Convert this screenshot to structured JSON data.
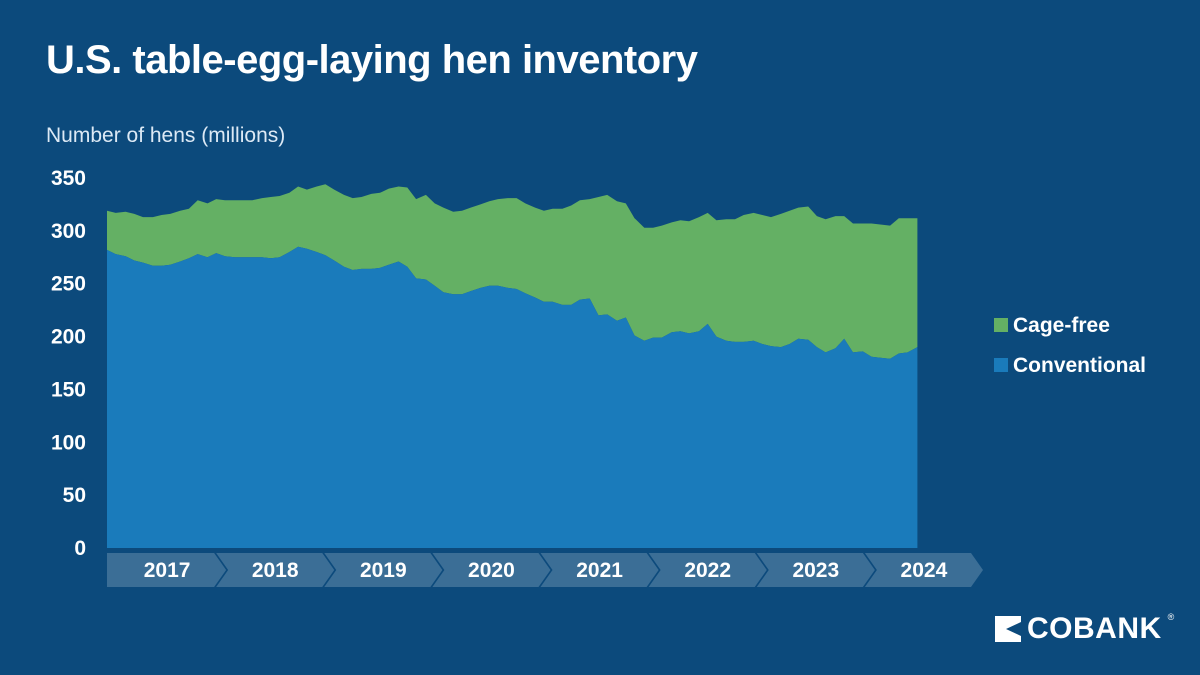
{
  "title": "U.S. table-egg-laying hen inventory",
  "brand": {
    "name": "COBANK",
    "reg_mark": "®"
  },
  "colors": {
    "background": "#0c4a7c",
    "conventional": "#1a7bbb",
    "cage_free": "#64b064",
    "year_band": "#3b6e96"
  },
  "chart_data": {
    "type": "area",
    "stacked": true,
    "title": "U.S. table-egg-laying hen inventory",
    "ylabel": "Number of hens (millions)",
    "xlabel": "",
    "ylim": [
      0,
      350
    ],
    "yticks": [
      "0",
      "50",
      "100",
      "150",
      "200",
      "250",
      "300",
      "350"
    ],
    "ytick_values": [
      0,
      50,
      100,
      150,
      200,
      250,
      300,
      350
    ],
    "grid": false,
    "legend_position": "right",
    "x_years": [
      "2017",
      "2018",
      "2019",
      "2020",
      "2021",
      "2022",
      "2023",
      "2024"
    ],
    "x_range": [
      2017.0,
      2024.92
    ],
    "series": [
      {
        "name": "Conventional",
        "color": "#1a7bbb",
        "points": [
          [
            2017.0,
            282
          ],
          [
            2017.08,
            278
          ],
          [
            2017.17,
            276
          ],
          [
            2017.25,
            272
          ],
          [
            2017.33,
            270
          ],
          [
            2017.42,
            267
          ],
          [
            2017.5,
            267
          ],
          [
            2017.58,
            268
          ],
          [
            2017.67,
            271
          ],
          [
            2017.75,
            274
          ],
          [
            2017.83,
            278
          ],
          [
            2017.92,
            275
          ],
          [
            2018.0,
            279
          ],
          [
            2018.08,
            276
          ],
          [
            2018.17,
            275
          ],
          [
            2018.25,
            275
          ],
          [
            2018.33,
            275
          ],
          [
            2018.42,
            275
          ],
          [
            2018.5,
            274
          ],
          [
            2018.58,
            275
          ],
          [
            2018.67,
            280
          ],
          [
            2018.75,
            285
          ],
          [
            2018.83,
            283
          ],
          [
            2018.92,
            280
          ],
          [
            2019.0,
            277
          ],
          [
            2019.08,
            272
          ],
          [
            2019.17,
            266
          ],
          [
            2019.25,
            263
          ],
          [
            2019.33,
            264
          ],
          [
            2019.42,
            264
          ],
          [
            2019.5,
            265
          ],
          [
            2019.58,
            268
          ],
          [
            2019.67,
            271
          ],
          [
            2019.75,
            266
          ],
          [
            2019.83,
            255
          ],
          [
            2019.92,
            254
          ],
          [
            2020.0,
            248
          ],
          [
            2020.08,
            242
          ],
          [
            2020.17,
            240
          ],
          [
            2020.25,
            240
          ],
          [
            2020.33,
            243
          ],
          [
            2020.42,
            246
          ],
          [
            2020.5,
            248
          ],
          [
            2020.58,
            248
          ],
          [
            2020.67,
            246
          ],
          [
            2020.75,
            245
          ],
          [
            2020.83,
            241
          ],
          [
            2020.92,
            237
          ],
          [
            2021.0,
            233
          ],
          [
            2021.08,
            233
          ],
          [
            2021.17,
            230
          ],
          [
            2021.25,
            230
          ],
          [
            2021.33,
            235
          ],
          [
            2021.42,
            236
          ],
          [
            2021.5,
            220
          ],
          [
            2021.58,
            221
          ],
          [
            2021.67,
            215
          ],
          [
            2021.75,
            218
          ],
          [
            2021.83,
            201
          ],
          [
            2021.92,
            196
          ],
          [
            2022.0,
            199
          ],
          [
            2022.08,
            199
          ],
          [
            2022.17,
            204
          ],
          [
            2022.25,
            205
          ],
          [
            2022.33,
            203
          ],
          [
            2022.42,
            205
          ],
          [
            2022.5,
            212
          ],
          [
            2022.58,
            200
          ],
          [
            2022.67,
            196
          ],
          [
            2022.75,
            195
          ],
          [
            2022.83,
            195
          ],
          [
            2022.92,
            196
          ],
          [
            2023.0,
            193
          ],
          [
            2023.08,
            191
          ],
          [
            2023.17,
            190
          ],
          [
            2023.25,
            193
          ],
          [
            2023.33,
            198
          ],
          [
            2023.42,
            197
          ],
          [
            2023.5,
            190
          ],
          [
            2023.58,
            185
          ],
          [
            2023.67,
            189
          ],
          [
            2023.75,
            198
          ],
          [
            2023.83,
            185
          ],
          [
            2023.92,
            186
          ],
          [
            2024.0,
            181
          ],
          [
            2024.08,
            180
          ],
          [
            2024.17,
            179
          ],
          [
            2024.25,
            184
          ],
          [
            2024.33,
            185
          ],
          [
            2024.42,
            190
          ]
        ]
      },
      {
        "name": "Cage-free",
        "color": "#64b064",
        "points": [
          [
            2017.0,
            37
          ],
          [
            2017.08,
            39
          ],
          [
            2017.17,
            42
          ],
          [
            2017.25,
            44
          ],
          [
            2017.33,
            43
          ],
          [
            2017.42,
            46
          ],
          [
            2017.5,
            48
          ],
          [
            2017.58,
            48
          ],
          [
            2017.67,
            48
          ],
          [
            2017.75,
            47
          ],
          [
            2017.83,
            51
          ],
          [
            2017.92,
            51
          ],
          [
            2018.0,
            51
          ],
          [
            2018.08,
            53
          ],
          [
            2018.17,
            54
          ],
          [
            2018.25,
            54
          ],
          [
            2018.33,
            54
          ],
          [
            2018.42,
            56
          ],
          [
            2018.5,
            58
          ],
          [
            2018.58,
            58
          ],
          [
            2018.67,
            56
          ],
          [
            2018.75,
            57
          ],
          [
            2018.83,
            56
          ],
          [
            2018.92,
            62
          ],
          [
            2019.0,
            67
          ],
          [
            2019.08,
            67
          ],
          [
            2019.17,
            68
          ],
          [
            2019.25,
            68
          ],
          [
            2019.33,
            68
          ],
          [
            2019.42,
            71
          ],
          [
            2019.5,
            71
          ],
          [
            2019.58,
            72
          ],
          [
            2019.67,
            71
          ],
          [
            2019.75,
            75
          ],
          [
            2019.83,
            75
          ],
          [
            2019.92,
            80
          ],
          [
            2020.0,
            78
          ],
          [
            2020.08,
            80
          ],
          [
            2020.17,
            78
          ],
          [
            2020.25,
            79
          ],
          [
            2020.33,
            79
          ],
          [
            2020.42,
            79
          ],
          [
            2020.5,
            80
          ],
          [
            2020.58,
            82
          ],
          [
            2020.67,
            85
          ],
          [
            2020.75,
            86
          ],
          [
            2020.83,
            85
          ],
          [
            2020.92,
            85
          ],
          [
            2021.0,
            86
          ],
          [
            2021.08,
            88
          ],
          [
            2021.17,
            91
          ],
          [
            2021.25,
            94
          ],
          [
            2021.33,
            94
          ],
          [
            2021.42,
            94
          ],
          [
            2021.5,
            112
          ],
          [
            2021.58,
            113
          ],
          [
            2021.67,
            113
          ],
          [
            2021.75,
            108
          ],
          [
            2021.83,
            111
          ],
          [
            2021.92,
            107
          ],
          [
            2022.0,
            104
          ],
          [
            2022.08,
            106
          ],
          [
            2022.17,
            104
          ],
          [
            2022.25,
            105
          ],
          [
            2022.33,
            106
          ],
          [
            2022.42,
            108
          ],
          [
            2022.5,
            105
          ],
          [
            2022.58,
            110
          ],
          [
            2022.67,
            115
          ],
          [
            2022.75,
            116
          ],
          [
            2022.83,
            120
          ],
          [
            2022.92,
            121
          ],
          [
            2023.0,
            122
          ],
          [
            2023.08,
            122
          ],
          [
            2023.17,
            126
          ],
          [
            2023.25,
            126
          ],
          [
            2023.33,
            124
          ],
          [
            2023.42,
            126
          ],
          [
            2023.5,
            124
          ],
          [
            2023.58,
            126
          ],
          [
            2023.67,
            125
          ],
          [
            2023.75,
            116
          ],
          [
            2023.83,
            122
          ],
          [
            2023.92,
            121
          ],
          [
            2024.0,
            126
          ],
          [
            2024.08,
            126
          ],
          [
            2024.17,
            126
          ],
          [
            2024.25,
            128
          ],
          [
            2024.33,
            127
          ],
          [
            2024.42,
            122
          ]
        ]
      }
    ]
  }
}
